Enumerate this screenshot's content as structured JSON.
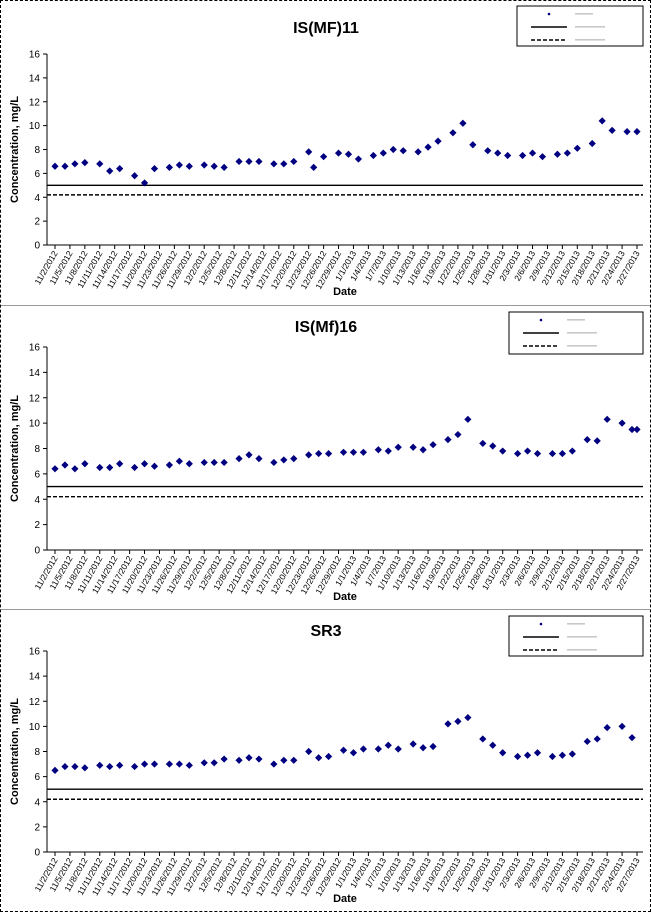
{
  "x_tick_labels": [
    "11/2/2012",
    "11/5/2012",
    "11/8/2012",
    "11/11/2012",
    "11/14/2012",
    "11/17/2012",
    "11/20/2012",
    "11/23/2012",
    "11/26/2012",
    "11/29/2012",
    "12/2/2012",
    "12/5/2012",
    "12/8/2012",
    "12/11/2012",
    "12/14/2012",
    "12/17/2012",
    "12/20/2012",
    "12/23/2012",
    "12/26/2012",
    "12/29/2012",
    "1/1/2013",
    "1/4/2013",
    "1/7/2013",
    "1/10/2013",
    "1/13/2013",
    "1/16/2013",
    "1/19/2013",
    "1/22/2013",
    "1/25/2013",
    "1/28/2013",
    "1/31/2013",
    "2/3/2013",
    "2/6/2013",
    "2/9/2013",
    "2/12/2013",
    "2/15/2013",
    "2/18/2013",
    "2/21/2013",
    "2/24/2013",
    "2/27/2013"
  ],
  "chart_data": [
    {
      "type": "scatter",
      "title": "IS(MF)11",
      "xlabel": "Date",
      "ylabel": "Concentration, mg/L",
      "ylim": [
        0,
        16
      ],
      "yticks": [
        0,
        2,
        4,
        6,
        8,
        10,
        12,
        14,
        16
      ],
      "xlim": [
        "11/2/2012",
        "2/27/2013"
      ],
      "grid": false,
      "legend_position": "top-right",
      "reference_lines": [
        {
          "style": "solid",
          "value": 5.0
        },
        {
          "style": "dashed",
          "value": 4.2
        }
      ],
      "series": [
        {
          "color": "#000080",
          "marker": "diamond",
          "x": [
            "11/2/2012",
            "11/4/2012",
            "11/6/2012",
            "11/8/2012",
            "11/11/2012",
            "11/13/2012",
            "11/15/2012",
            "11/18/2012",
            "11/20/2012",
            "11/22/2012",
            "11/25/2012",
            "11/27/2012",
            "11/29/2012",
            "12/2/2012",
            "12/4/2012",
            "12/6/2012",
            "12/9/2012",
            "12/11/2012",
            "12/13/2012",
            "12/16/2012",
            "12/18/2012",
            "12/20/2012",
            "12/23/2012",
            "12/24/2012",
            "12/26/2012",
            "12/29/2012",
            "12/31/2012",
            "1/2/2013",
            "1/5/2013",
            "1/7/2013",
            "1/9/2013",
            "1/11/2013",
            "1/14/2013",
            "1/16/2013",
            "1/18/2013",
            "1/21/2013",
            "1/23/2013",
            "1/25/2013",
            "1/28/2013",
            "1/30/2013",
            "2/1/2013",
            "2/4/2013",
            "2/6/2013",
            "2/8/2013",
            "2/11/2013",
            "2/13/2013",
            "2/15/2013",
            "2/18/2013",
            "2/20/2013",
            "2/22/2013",
            "2/25/2013",
            "2/27/2013"
          ],
          "y": [
            6.6,
            6.6,
            6.8,
            6.9,
            6.8,
            6.2,
            6.4,
            5.8,
            5.2,
            6.4,
            6.5,
            6.7,
            6.6,
            6.7,
            6.6,
            6.5,
            7.0,
            7.0,
            7.0,
            6.8,
            6.8,
            7.0,
            7.8,
            6.5,
            7.4,
            7.7,
            7.6,
            7.2,
            7.5,
            7.7,
            8.0,
            7.9,
            7.8,
            8.2,
            8.7,
            9.4,
            10.2,
            8.4,
            7.9,
            7.7,
            7.5,
            7.5,
            7.7,
            7.4,
            7.6,
            7.7,
            8.1,
            8.5,
            10.4,
            9.6,
            9.5,
            9.5
          ]
        }
      ]
    },
    {
      "type": "scatter",
      "title": "IS(Mf)16",
      "xlabel": "Date",
      "ylabel": "Concentration, mg/L",
      "ylim": [
        0,
        16
      ],
      "yticks": [
        0,
        2,
        4,
        6,
        8,
        10,
        12,
        14,
        16
      ],
      "xlim": [
        "11/2/2012",
        "2/27/2013"
      ],
      "grid": false,
      "legend_position": "top-right",
      "reference_lines": [
        {
          "style": "solid",
          "value": 5.0
        },
        {
          "style": "dashed",
          "value": 4.2
        }
      ],
      "series": [
        {
          "color": "#000080",
          "marker": "diamond",
          "x": [
            "11/2/2012",
            "11/4/2012",
            "11/6/2012",
            "11/8/2012",
            "11/11/2012",
            "11/13/2012",
            "11/15/2012",
            "11/18/2012",
            "11/20/2012",
            "11/22/2012",
            "11/25/2012",
            "11/27/2012",
            "11/29/2012",
            "12/2/2012",
            "12/4/2012",
            "12/6/2012",
            "12/9/2012",
            "12/11/2012",
            "12/13/2012",
            "12/16/2012",
            "12/18/2012",
            "12/20/2012",
            "12/23/2012",
            "12/25/2012",
            "12/27/2012",
            "12/30/2012",
            "1/1/2013",
            "1/3/2013",
            "1/6/2013",
            "1/8/2013",
            "1/10/2013",
            "1/13/2013",
            "1/15/2013",
            "1/17/2013",
            "1/20/2013",
            "1/22/2013",
            "1/24/2013",
            "1/27/2013",
            "1/29/2013",
            "1/31/2013",
            "2/3/2013",
            "2/5/2013",
            "2/7/2013",
            "2/10/2013",
            "2/12/2013",
            "2/14/2013",
            "2/17/2013",
            "2/19/2013",
            "2/21/2013",
            "2/24/2013",
            "2/26/2013",
            "2/27/2013"
          ],
          "y": [
            6.4,
            6.7,
            6.4,
            6.8,
            6.5,
            6.5,
            6.8,
            6.5,
            6.8,
            6.6,
            6.7,
            7.0,
            6.8,
            6.9,
            6.9,
            6.9,
            7.2,
            7.5,
            7.2,
            6.9,
            7.1,
            7.2,
            7.5,
            7.6,
            7.6,
            7.7,
            7.7,
            7.7,
            7.9,
            7.8,
            8.1,
            8.1,
            7.9,
            8.3,
            8.7,
            9.1,
            10.3,
            8.4,
            8.2,
            7.8,
            7.6,
            7.8,
            7.6,
            7.6,
            7.6,
            7.8,
            8.7,
            8.6,
            10.3,
            10.0,
            9.5,
            9.5
          ]
        }
      ]
    },
    {
      "type": "scatter",
      "title": "SR3",
      "xlabel": "Date",
      "ylabel": "Concentration, mg/L",
      "ylim": [
        0,
        16
      ],
      "yticks": [
        0,
        2,
        4,
        6,
        8,
        10,
        12,
        14,
        16
      ],
      "xlim": [
        "11/2/2012",
        "2/27/2013"
      ],
      "grid": false,
      "legend_position": "top-right",
      "reference_lines": [
        {
          "style": "solid",
          "value": 5.0
        },
        {
          "style": "dashed",
          "value": 4.2
        }
      ],
      "series": [
        {
          "color": "#000080",
          "marker": "diamond",
          "x": [
            "11/2/2012",
            "11/4/2012",
            "11/6/2012",
            "11/8/2012",
            "11/11/2012",
            "11/13/2012",
            "11/15/2012",
            "11/18/2012",
            "11/20/2012",
            "11/22/2012",
            "11/25/2012",
            "11/27/2012",
            "11/29/2012",
            "12/2/2012",
            "12/4/2012",
            "12/6/2012",
            "12/9/2012",
            "12/11/2012",
            "12/13/2012",
            "12/16/2012",
            "12/18/2012",
            "12/20/2012",
            "12/23/2012",
            "12/25/2012",
            "12/27/2012",
            "12/30/2012",
            "1/1/2013",
            "1/3/2013",
            "1/6/2013",
            "1/8/2013",
            "1/10/2013",
            "1/13/2013",
            "1/15/2013",
            "1/17/2013",
            "1/20/2013",
            "1/22/2013",
            "1/24/2013",
            "1/27/2013",
            "1/29/2013",
            "1/31/2013",
            "2/3/2013",
            "2/5/2013",
            "2/7/2013",
            "2/10/2013",
            "2/12/2013",
            "2/14/2013",
            "2/17/2013",
            "2/19/2013",
            "2/21/2013",
            "2/24/2013",
            "2/26/2013"
          ],
          "y": [
            6.5,
            6.8,
            6.8,
            6.7,
            6.9,
            6.8,
            6.9,
            6.8,
            7.0,
            7.0,
            7.0,
            7.0,
            6.9,
            7.1,
            7.1,
            7.4,
            7.3,
            7.5,
            7.4,
            7.0,
            7.3,
            7.3,
            8.0,
            7.5,
            7.6,
            8.1,
            7.9,
            8.2,
            8.2,
            8.5,
            8.2,
            8.6,
            8.3,
            8.4,
            10.2,
            10.4,
            10.7,
            9.0,
            8.5,
            7.9,
            7.6,
            7.7,
            7.9,
            7.6,
            7.7,
            7.8,
            8.8,
            9.0,
            9.9,
            10.0,
            9.1
          ]
        }
      ]
    }
  ]
}
